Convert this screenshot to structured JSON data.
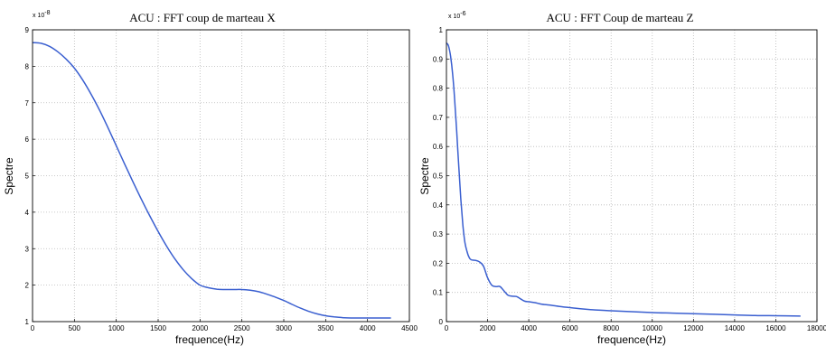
{
  "chart_data": [
    {
      "type": "line",
      "title": "ACU : FFT coup de marteau X",
      "xlabel": "frequence(Hz)",
      "ylabel": "Spectre",
      "exponent_label": "x 10",
      "exponent_power": "-8",
      "xlim": [
        0,
        4500
      ],
      "ylim": [
        1,
        9
      ],
      "xticks": [
        "0",
        "500",
        "1000",
        "1500",
        "2000",
        "2500",
        "3000",
        "3500",
        "4000",
        "4500"
      ],
      "yticks": [
        "1",
        "2",
        "3",
        "4",
        "5",
        "6",
        "7",
        "8",
        "9"
      ],
      "grid": true,
      "color": "#3a5fd0",
      "series": [
        {
          "x": [
            0,
            100,
            200,
            300,
            400,
            500,
            600,
            700,
            800,
            900,
            1000,
            1100,
            1200,
            1300,
            1400,
            1500,
            1600,
            1700,
            1800,
            1900,
            2000,
            2100,
            2200,
            2300,
            2400,
            2500,
            2600,
            2700,
            2800,
            2900,
            3000,
            3100,
            3200,
            3300,
            3400,
            3500,
            3600,
            3700,
            3800,
            3900,
            4000,
            4100,
            4200,
            4280
          ],
          "y": [
            8.65,
            8.63,
            8.55,
            8.4,
            8.2,
            7.95,
            7.62,
            7.23,
            6.8,
            6.32,
            5.82,
            5.32,
            4.83,
            4.35,
            3.9,
            3.47,
            3.07,
            2.72,
            2.42,
            2.18,
            2.0,
            1.93,
            1.89,
            1.88,
            1.88,
            1.88,
            1.86,
            1.82,
            1.75,
            1.67,
            1.58,
            1.47,
            1.37,
            1.28,
            1.21,
            1.16,
            1.13,
            1.11,
            1.1,
            1.1,
            1.1,
            1.1,
            1.1,
            1.1
          ]
        }
      ]
    },
    {
      "type": "line",
      "title": "ACU : FFT Coup de marteau Z",
      "xlabel": "frequence(Hz)",
      "ylabel": "Spectre",
      "exponent_label": "x 10",
      "exponent_power": "-6",
      "xlim": [
        0,
        18000
      ],
      "ylim": [
        0,
        1
      ],
      "xticks": [
        "0",
        "2000",
        "4000",
        "6000",
        "8000",
        "10000",
        "12000",
        "14000",
        "16000",
        "18000"
      ],
      "yticks": [
        "0",
        "0.1",
        "0.2",
        "0.3",
        "0.4",
        "0.5",
        "0.6",
        "0.7",
        "0.8",
        "0.9",
        "1"
      ],
      "grid": true,
      "color": "#3a5fd0",
      "series": [
        {
          "x": [
            0,
            100,
            200,
            300,
            400,
            500,
            600,
            700,
            800,
            900,
            1000,
            1100,
            1200,
            1400,
            1600,
            1800,
            2000,
            2200,
            2400,
            2600,
            2800,
            3000,
            3200,
            3400,
            3600,
            3800,
            4000,
            4300,
            4600,
            5000,
            5500,
            6000,
            6500,
            7000,
            8000,
            9000,
            10000,
            11000,
            12000,
            13000,
            14000,
            15000,
            16000,
            17200
          ],
          "y": [
            0.955,
            0.945,
            0.91,
            0.85,
            0.76,
            0.65,
            0.53,
            0.42,
            0.33,
            0.27,
            0.24,
            0.22,
            0.212,
            0.21,
            0.205,
            0.19,
            0.15,
            0.125,
            0.12,
            0.12,
            0.105,
            0.09,
            0.087,
            0.086,
            0.078,
            0.07,
            0.068,
            0.065,
            0.06,
            0.057,
            0.052,
            0.048,
            0.044,
            0.041,
            0.037,
            0.034,
            0.031,
            0.029,
            0.027,
            0.025,
            0.023,
            0.021,
            0.02,
            0.019
          ]
        }
      ]
    }
  ]
}
